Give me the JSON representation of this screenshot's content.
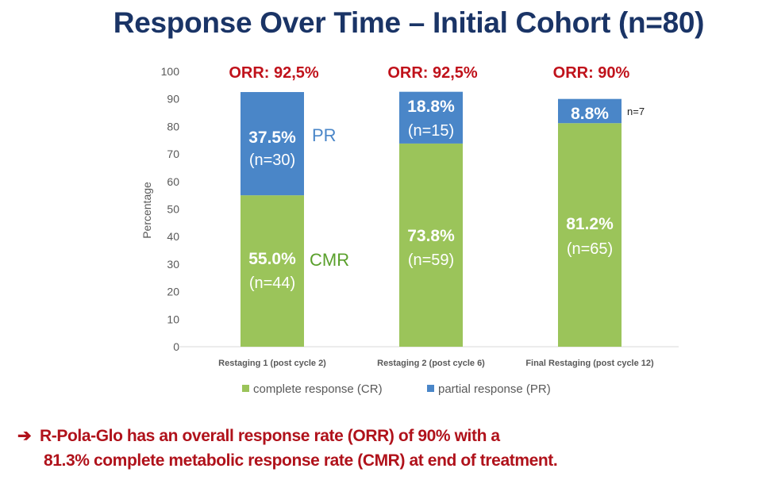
{
  "header": {
    "title": "Response Over Time – Initial Cohort (n=80)"
  },
  "chart_data": {
    "type": "bar",
    "stacked": true,
    "title": "Response Over Time – Initial Cohort (n=80)",
    "xlabel": "",
    "ylabel": "Percentage",
    "ylim": [
      0,
      100
    ],
    "yticks": [
      0,
      10,
      20,
      30,
      40,
      50,
      60,
      70,
      80,
      90,
      100
    ],
    "grid": false,
    "legend_position": "bottom",
    "categories": [
      "Restaging 1 (post cycle 2)",
      "Restaging 2 (post cycle 6)",
      "Final Restaging (post cycle 12)"
    ],
    "series": [
      {
        "name": "complete response (CR)",
        "color": "#9bc45a",
        "values": [
          55.0,
          73.8,
          81.2
        ],
        "labels": [
          "55.0%",
          "73.8%",
          "81.2%"
        ],
        "counts": [
          "(n=44)",
          "(n=59)",
          "(n=65)"
        ]
      },
      {
        "name": "partial response (PR)",
        "color": "#4a86c8",
        "values": [
          37.5,
          18.8,
          8.8
        ],
        "labels": [
          "37.5%",
          "18.8%",
          "8.8%"
        ],
        "counts": [
          "(n=30)",
          "(n=15)",
          ""
        ]
      }
    ],
    "orr_labels": [
      "ORR: 92,5%",
      "ORR: 92,5%",
      "ORR: 90%"
    ],
    "annotations": {
      "pr_side_label": "PR",
      "cmr_side_label": "CMR",
      "final_pr_count": "n=7"
    },
    "colors": {
      "orr_text": "#c0121b",
      "axis_text": "#595959",
      "pr_annotation": "#4a86c8",
      "cmr_annotation": "#5aa02c",
      "bar_text": "#ffffff"
    }
  },
  "footer": {
    "arrow": "➔",
    "line1": "R-Pola-Glo has an overall response rate (ORR) of 90% with a",
    "line2": "81.3% complete metabolic response rate (CMR) at end of treatment."
  }
}
